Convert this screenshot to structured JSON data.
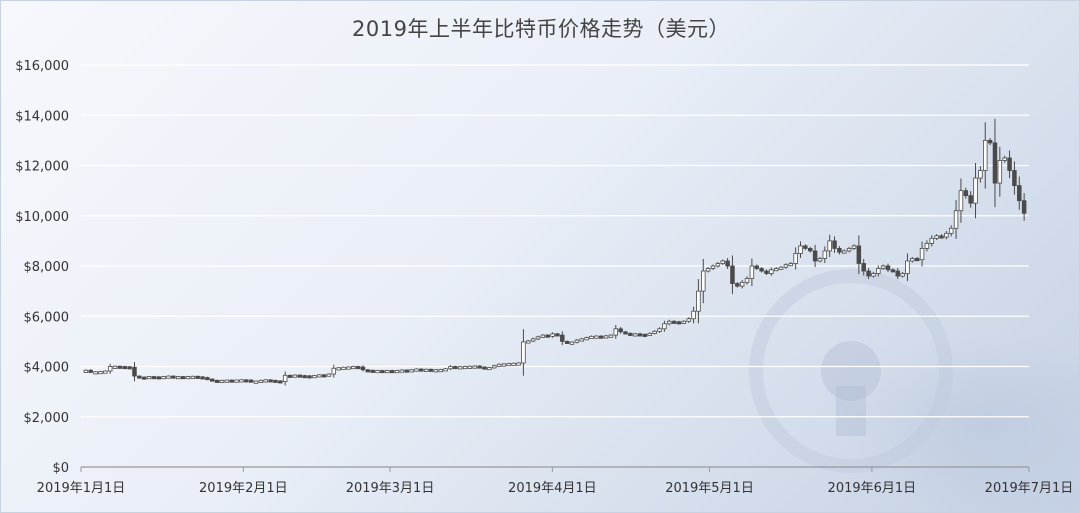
{
  "chart_data": {
    "type": "candlestick",
    "title": "2019年上半年比特币价格走势（美元）",
    "xlabel": "",
    "ylabel": "",
    "y_ticks": [
      "$0",
      "$2,000",
      "$4,000",
      "$6,000",
      "$8,000",
      "$10,000",
      "$12,000",
      "$14,000",
      "$16,000"
    ],
    "ylim": [
      0,
      16000
    ],
    "x_ticks": [
      {
        "label": "2019年1月1日",
        "day": 0
      },
      {
        "label": "2019年2月1日",
        "day": 31
      },
      {
        "label": "2019年3月1日",
        "day": 59
      },
      {
        "label": "2019年4月1日",
        "day": 90
      },
      {
        "label": "2019年5月1日",
        "day": 120
      },
      {
        "label": "2019年6月1日",
        "day": 151
      },
      {
        "label": "2019年7月1日",
        "day": 181
      }
    ],
    "grid": true,
    "colors": {
      "candle": "#4a4a4a",
      "grid": "#ffffff",
      "axis": "#999999"
    },
    "close_series": [
      3800,
      3850,
      3780,
      3790,
      3800,
      3820,
      4000,
      4010,
      4000,
      3990,
      3970,
      3620,
      3580,
      3560,
      3600,
      3590,
      3560,
      3600,
      3620,
      3590,
      3600,
      3580,
      3600,
      3610,
      3590,
      3560,
      3500,
      3450,
      3430,
      3450,
      3460,
      3450,
      3460,
      3470,
      3460,
      3400,
      3420,
      3450,
      3470,
      3450,
      3430,
      3400,
      3650,
      3620,
      3660,
      3640,
      3630,
      3620,
      3640,
      3670,
      3650,
      3700,
      3930,
      3950,
      3970,
      3980,
      4000,
      3980,
      3870,
      3850,
      3830,
      3840,
      3800,
      3840,
      3830,
      3840,
      3860,
      3850,
      3870,
      3900,
      3880,
      3890,
      3860,
      3870,
      3880,
      3910,
      4000,
      3970,
      3990,
      4000,
      4010,
      4020,
      3980,
      3950,
      3960,
      4030,
      4090,
      4100,
      4120,
      4130,
      4140,
      4980,
      5020,
      5100,
      5180,
      5250,
      5200,
      5300,
      5250,
      5000,
      4950,
      4970,
      5050,
      5100,
      5150,
      5200,
      5210,
      5190,
      5220,
      5250,
      5500,
      5380,
      5320,
      5270,
      5300,
      5280,
      5270,
      5320,
      5400,
      5500,
      5700,
      5800,
      5780,
      5750,
      5800,
      5900,
      6200,
      7000,
      7800,
      7900,
      8000,
      8100,
      8200,
      8000,
      7300,
      7200,
      7350,
      7500,
      8000,
      7900,
      7800,
      7700,
      7850,
      7900,
      7950,
      8050,
      8100,
      8500,
      8800,
      8700,
      8600,
      8200,
      8300,
      8600,
      9000,
      8700,
      8550,
      8600,
      8700,
      8800,
      8100,
      7800,
      7600,
      7700,
      7900,
      8000,
      7850,
      7800,
      7600,
      7700,
      8200,
      8300,
      8250,
      8700,
      8900,
      9100,
      9200,
      9150,
      9300,
      9500,
      10200,
      11000,
      10800,
      10500,
      11500,
      11800,
      13000,
      12900,
      11300,
      12200,
      12300,
      11800,
      11200,
      10600,
      10100
    ]
  }
}
